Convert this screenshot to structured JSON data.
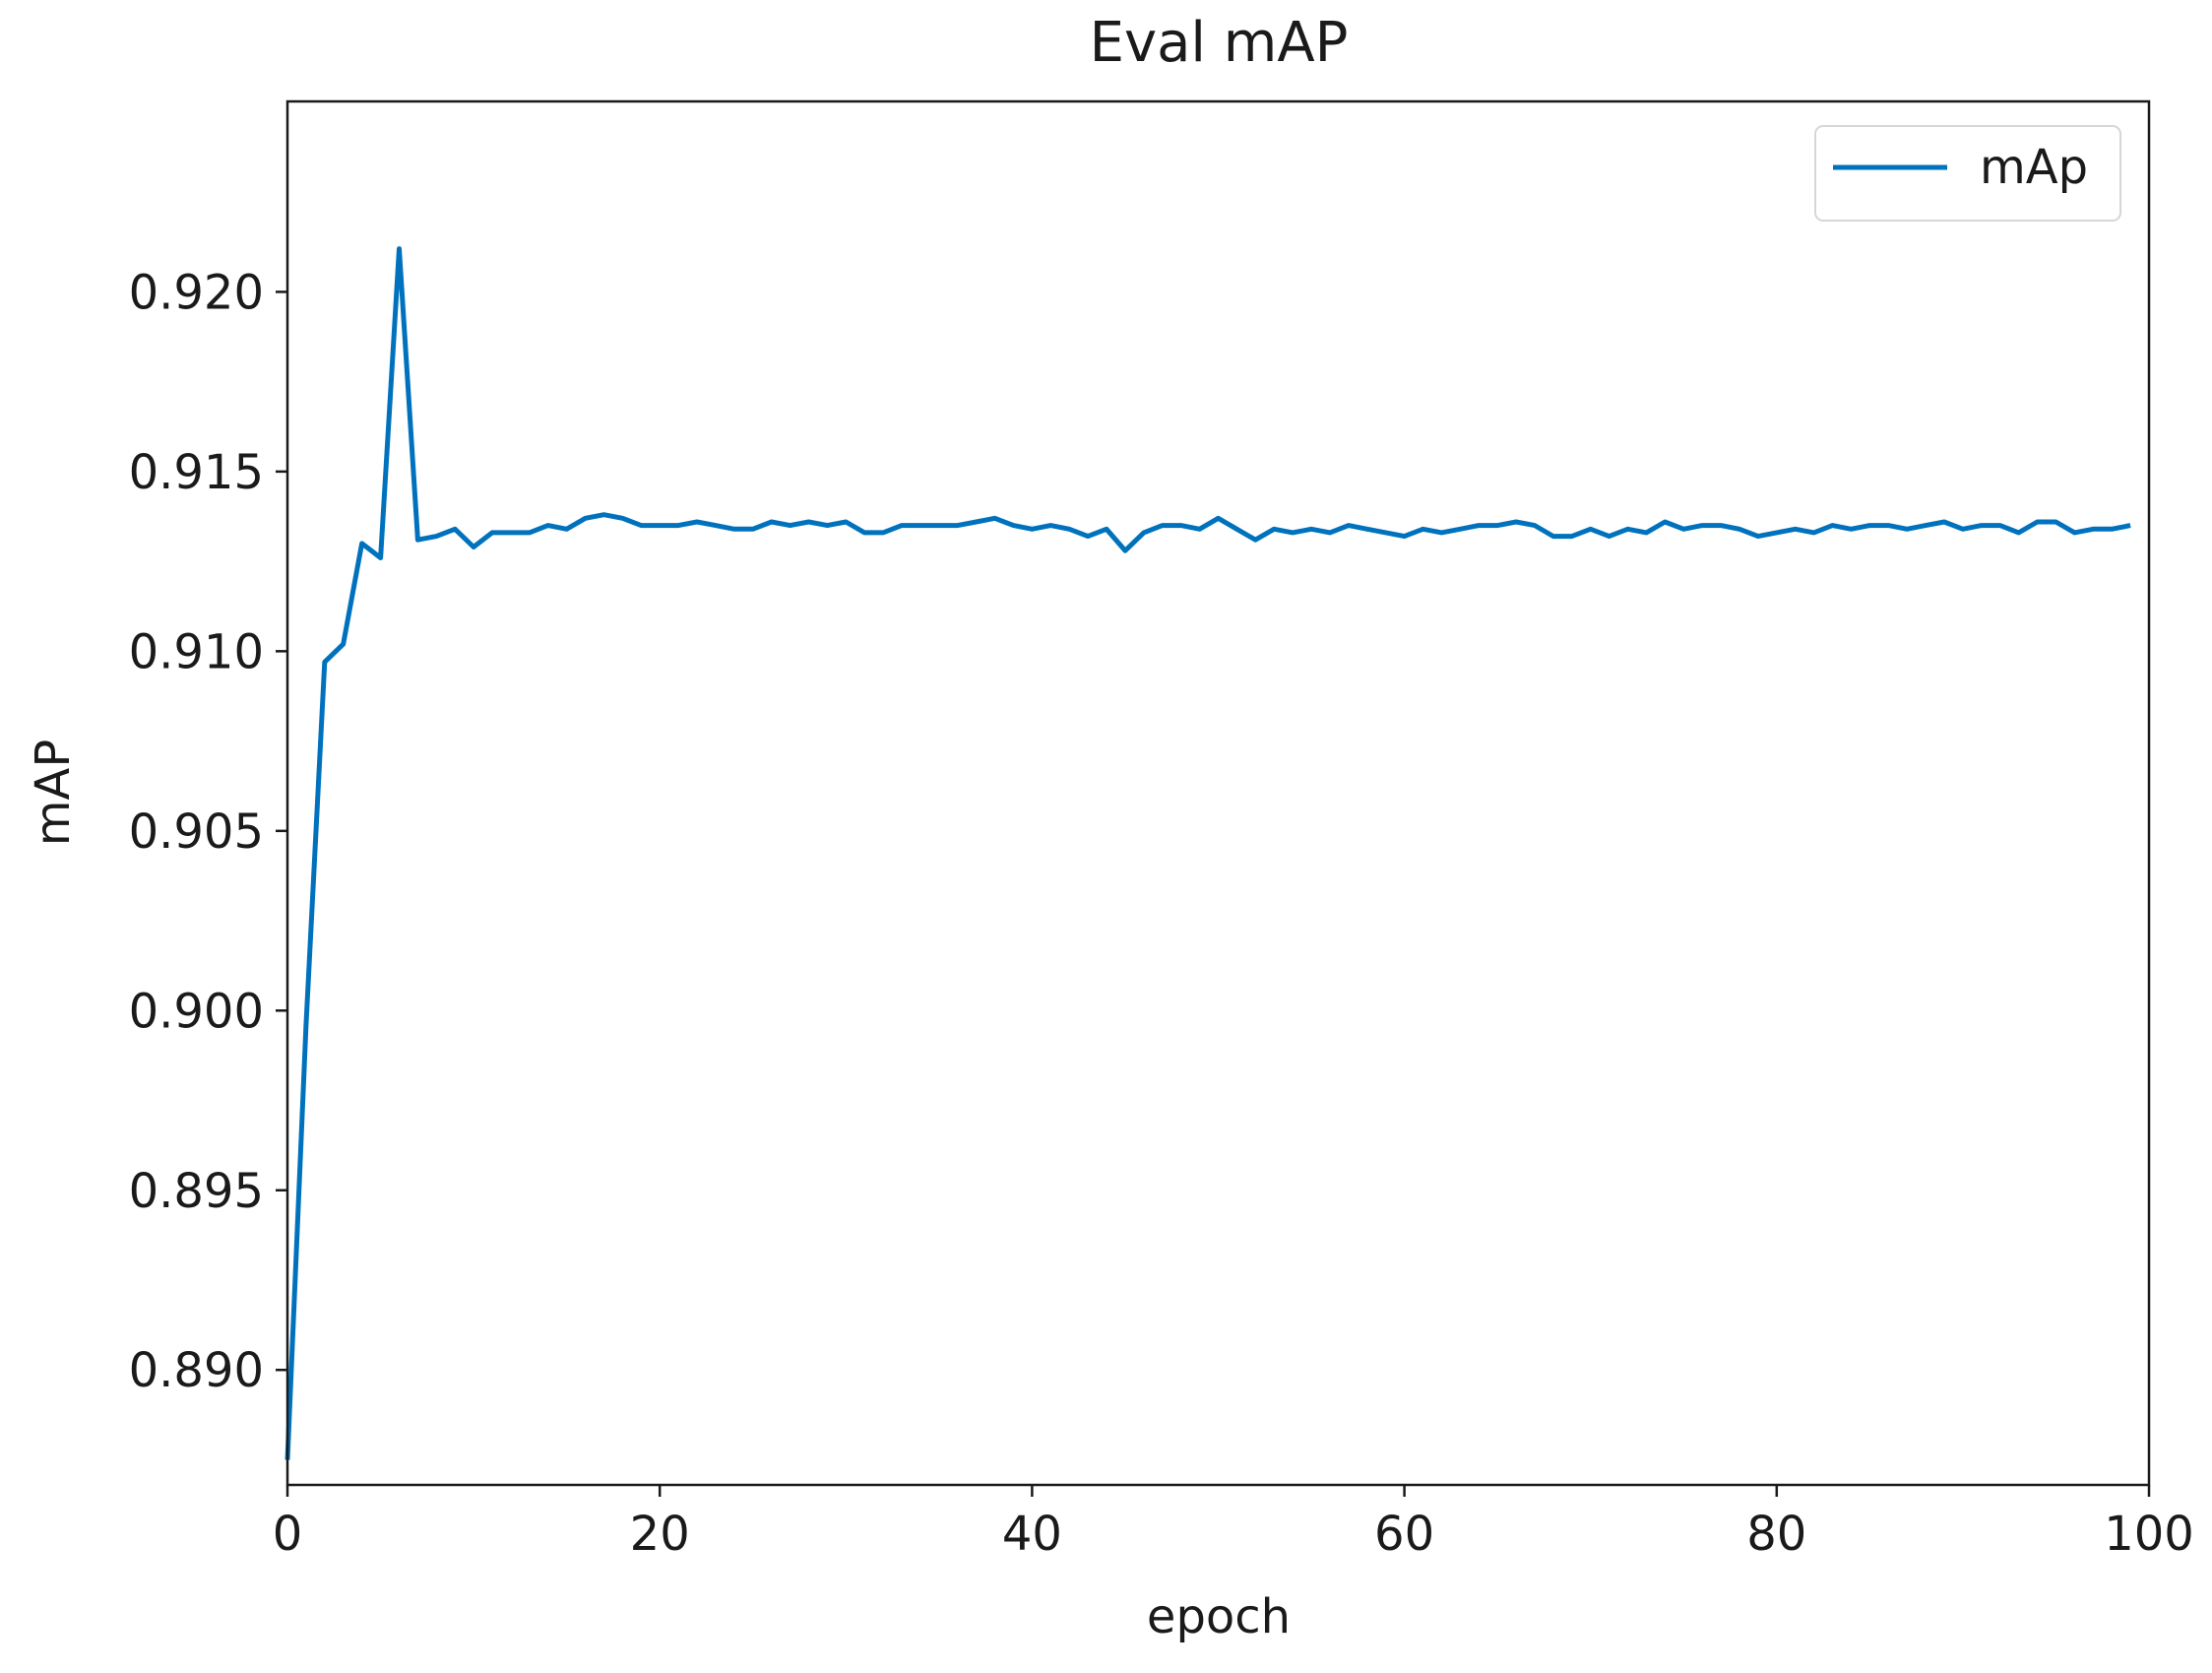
{
  "chart_data": {
    "type": "line",
    "title": "Eval mAP",
    "xlabel": "epoch",
    "ylabel": "mAP",
    "xlim": [
      0,
      100
    ],
    "ylim": [
      0.8868,
      0.9253
    ],
    "x_ticks": [
      0,
      20,
      40,
      60,
      80,
      100
    ],
    "x_tick_labels": [
      "0",
      "20",
      "40",
      "60",
      "80",
      "100"
    ],
    "y_ticks": [
      0.89,
      0.895,
      0.9,
      0.905,
      0.91,
      0.915,
      0.92
    ],
    "y_tick_labels": [
      "0.890",
      "0.895",
      "0.900",
      "0.905",
      "0.910",
      "0.915",
      "0.920"
    ],
    "legend": {
      "position": "top-right",
      "entries": [
        "mAp"
      ]
    },
    "grid": false,
    "series": [
      {
        "name": "mAp",
        "color": "#0072bd",
        "x": [
          0,
          1,
          2,
          3,
          4,
          5,
          6,
          7,
          8,
          9,
          10,
          11,
          12,
          13,
          14,
          15,
          16,
          17,
          18,
          19,
          20,
          21,
          22,
          23,
          24,
          25,
          26,
          27,
          28,
          29,
          30,
          31,
          32,
          33,
          34,
          35,
          36,
          37,
          38,
          39,
          40,
          41,
          42,
          43,
          44,
          45,
          46,
          47,
          48,
          49,
          50,
          51,
          52,
          53,
          54,
          55,
          56,
          57,
          58,
          59,
          60,
          61,
          62,
          63,
          64,
          65,
          66,
          67,
          68,
          69,
          70,
          71,
          72,
          73,
          74,
          75,
          76,
          77,
          78,
          79,
          80,
          81,
          82,
          83,
          84,
          85,
          86,
          87,
          88,
          89,
          90,
          91,
          92,
          93,
          94,
          95,
          96,
          97,
          98,
          99
        ],
        "values": [
          0.8875,
          0.8996,
          0.9097,
          0.9102,
          0.913,
          0.9126,
          0.9212,
          0.9131,
          0.9132,
          0.9134,
          0.9129,
          0.9133,
          0.9133,
          0.9133,
          0.9135,
          0.9134,
          0.9137,
          0.9138,
          0.9137,
          0.9135,
          0.9135,
          0.9135,
          0.9136,
          0.9135,
          0.9134,
          0.9134,
          0.9136,
          0.9135,
          0.9136,
          0.9135,
          0.9136,
          0.9133,
          0.9133,
          0.9135,
          0.9135,
          0.9135,
          0.9135,
          0.9136,
          0.9137,
          0.9135,
          0.9134,
          0.9135,
          0.9134,
          0.9132,
          0.9134,
          0.9128,
          0.9133,
          0.9135,
          0.9135,
          0.9134,
          0.9137,
          0.9134,
          0.9131,
          0.9134,
          0.9133,
          0.9134,
          0.9133,
          0.9135,
          0.9134,
          0.9133,
          0.9132,
          0.9134,
          0.9133,
          0.9134,
          0.9135,
          0.9135,
          0.9136,
          0.9135,
          0.9132,
          0.9132,
          0.9134,
          0.9132,
          0.9134,
          0.9133,
          0.9136,
          0.9134,
          0.9135,
          0.9135,
          0.9134,
          0.9132,
          0.9133,
          0.9134,
          0.9133,
          0.9135,
          0.9134,
          0.9135,
          0.9135,
          0.9134,
          0.9135,
          0.9136,
          0.9134,
          0.9135,
          0.9135,
          0.9133,
          0.9136,
          0.9136,
          0.9133,
          0.9134,
          0.9134,
          0.9135
        ]
      }
    ]
  }
}
